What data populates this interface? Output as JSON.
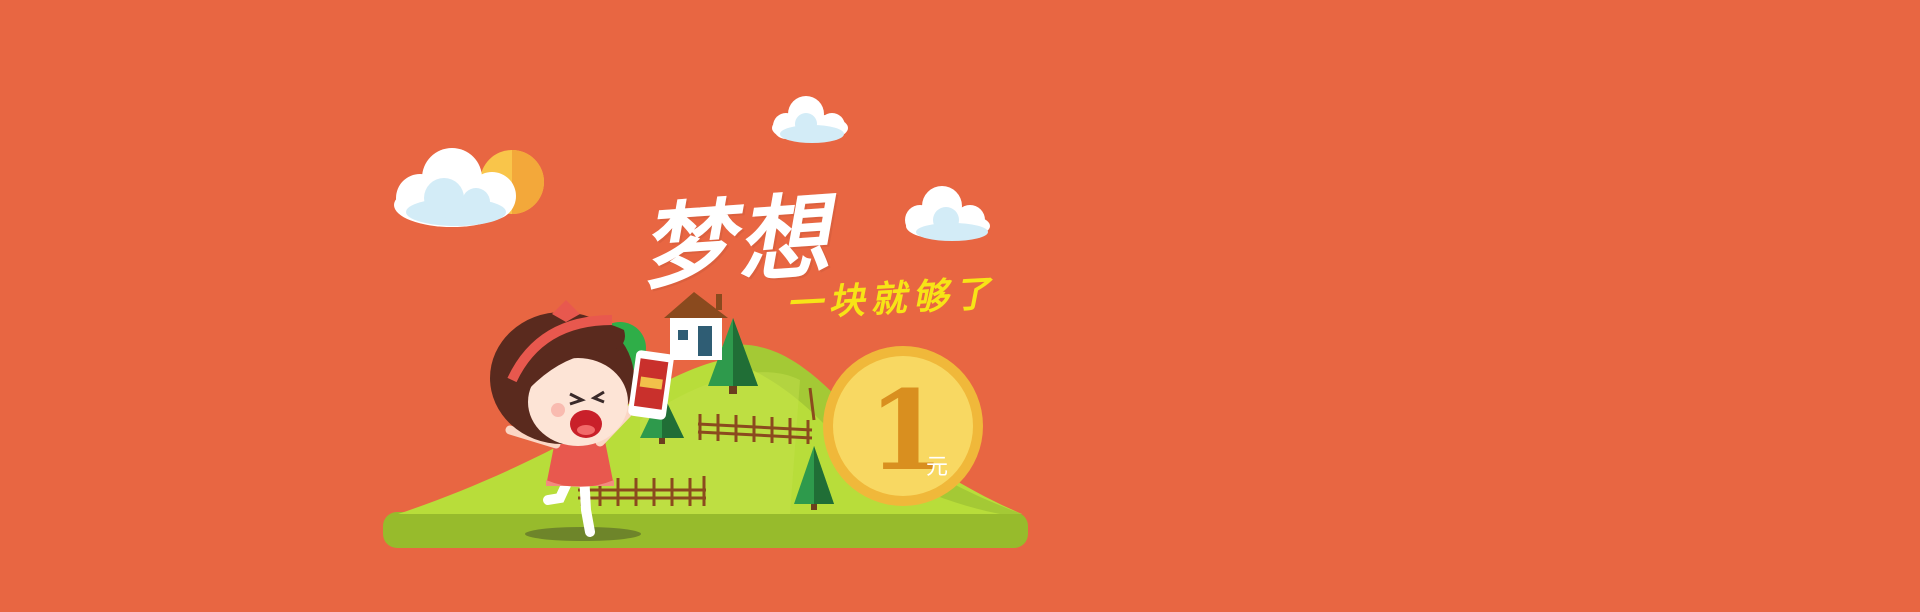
{
  "banner": {
    "headline": "梦想",
    "tagline": "一块就够了",
    "coin_value": "1",
    "coin_unit": "元",
    "colors": {
      "background": "#e86642",
      "hill_light": "#b8dd3a",
      "hill_dark": "#97bb2c",
      "coin": "#f4c339",
      "coin_inner": "#f8d862",
      "tagline": "#f7e416"
    },
    "icons": [
      "cloud-icon",
      "sun-icon",
      "house-icon",
      "tree-icon",
      "fence-icon",
      "girl-illustration",
      "phone-icon",
      "coin-icon"
    ]
  }
}
